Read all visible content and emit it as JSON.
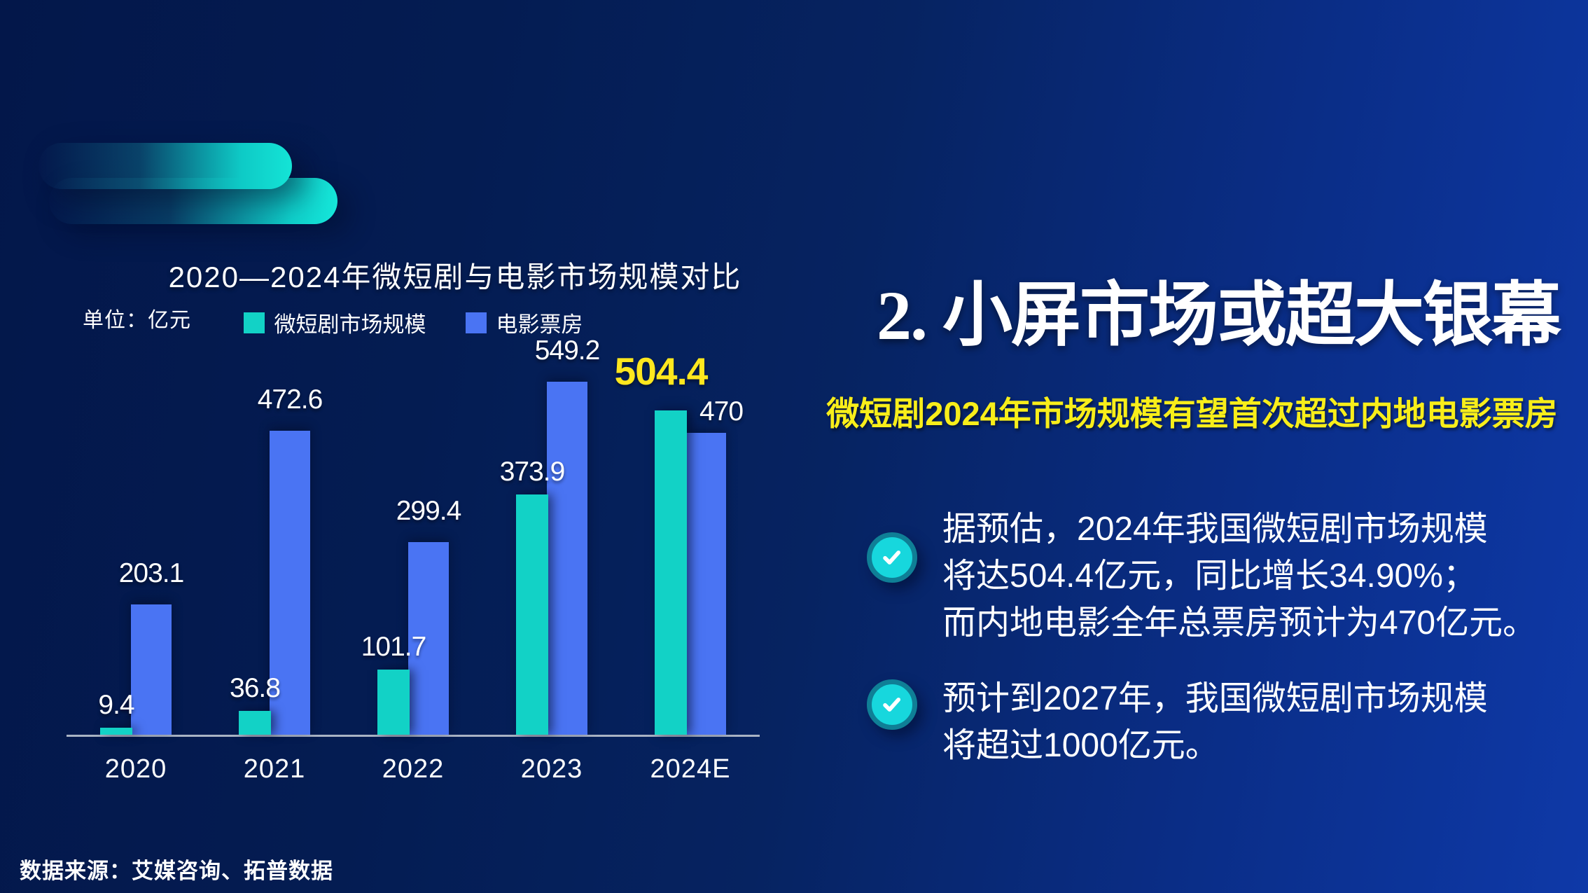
{
  "slide": {
    "source": "数据来源：艾媒咨询、拓普数据"
  },
  "chart": {
    "title": "2020—2024年微短剧与电影市场规模对比",
    "unit": "单位：亿元",
    "legend": [
      {
        "label": "微短剧市场规模",
        "color": "#12d2c6"
      },
      {
        "label": "电影票房",
        "color": "#4a74f3"
      }
    ]
  },
  "chart_data": {
    "type": "bar",
    "title": "2020—2024年微短剧与电影市场规模对比",
    "unit": "亿元",
    "categories": [
      "2020",
      "2021",
      "2022",
      "2023",
      "2024E"
    ],
    "series": [
      {
        "name": "微短剧市场规模",
        "color": "#12d2c6",
        "values": [
          9.4,
          36.8,
          101.7,
          373.9,
          504.4
        ]
      },
      {
        "name": "电影票房",
        "color": "#4a74f3",
        "values": [
          203.1,
          472.6,
          299.4,
          549.2,
          470
        ]
      }
    ],
    "ylim": [
      0,
      549.2
    ],
    "grid": false,
    "legend_position": "top",
    "highlight": {
      "series": 0,
      "index": 4,
      "color": "#ffe71e"
    }
  },
  "right_panel": {
    "heading": "2. 小屏市场或超大银幕",
    "subheading": "微短剧2024年市场规模有望首次超过内地电影票房",
    "bullets": [
      {
        "lines": [
          "据预估，2024年我国微短剧市场规模",
          "将达504.4亿元，同比增长34.90%；",
          "而内地电影全年总票房预计为470亿元。"
        ]
      },
      {
        "lines": [
          "预计到2027年，我国微短剧市场规模",
          "将超过1000亿元。"
        ]
      }
    ]
  },
  "colors": {
    "background_left": "#03174a",
    "background_right": "#0e39a8",
    "teal": "#12d2c6",
    "blue": "#4a74f3",
    "yellow_highlight": "#ffe71e",
    "yellow_subheading": "#f8ee1a",
    "axis_line": "#a9b3c4",
    "check_fill": "#17d7dd",
    "check_ring": "#0f7f96"
  }
}
